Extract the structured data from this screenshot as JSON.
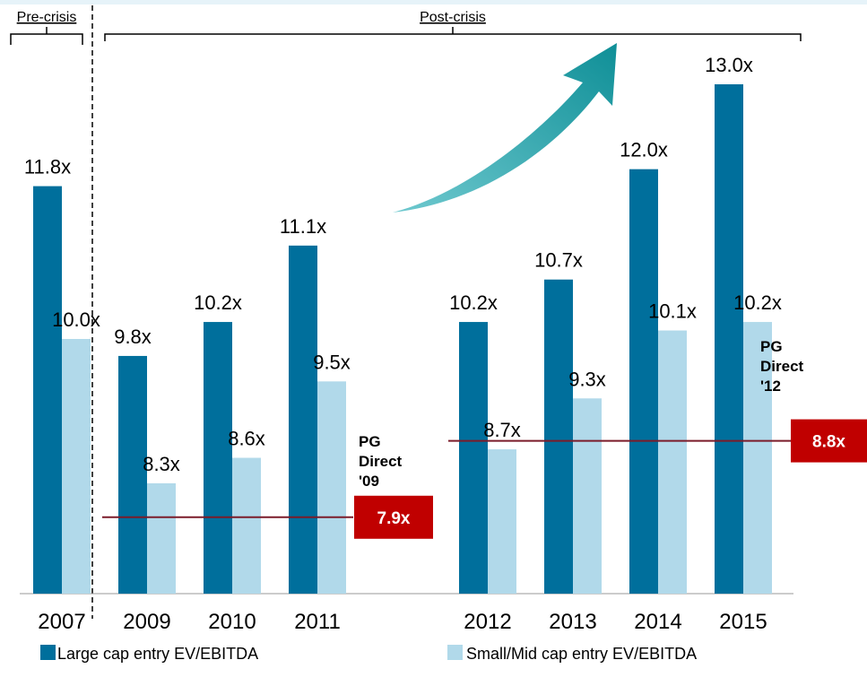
{
  "chart_data": {
    "type": "bar",
    "categories": [
      "2007",
      "2009",
      "2010",
      "2011",
      null,
      "2012",
      "2013",
      "2014",
      "2015"
    ],
    "series": [
      {
        "name": "Large cap entry EV/EBITDA",
        "color": "#006f9c",
        "values": [
          11.8,
          9.8,
          10.2,
          11.1,
          null,
          10.2,
          10.7,
          12.0,
          13.0
        ],
        "value_labels": [
          "11.8x",
          "9.8x",
          "10.2x",
          "11.1x",
          null,
          "10.2x",
          "10.7x",
          "12.0x",
          "13.0x"
        ]
      },
      {
        "name": "Small/Mid cap entry EV/EBITDA",
        "color": "#b1d9ea",
        "values": [
          10.0,
          8.3,
          8.6,
          9.5,
          null,
          8.7,
          9.3,
          10.1,
          10.2
        ],
        "value_labels": [
          "10.0x",
          "8.3x",
          "8.6x",
          "9.5x",
          null,
          "8.7x",
          "9.3x",
          "10.1x",
          "10.2x"
        ]
      }
    ],
    "ylim": [
      7,
      13
    ],
    "sections": [
      "Pre-crisis",
      "Post-crisis"
    ],
    "reference_lines": [
      {
        "value": 7.9,
        "label": "7.9x",
        "annotation": "PG Direct '09",
        "color": "#7b1c2a",
        "box_color": "#c00000"
      },
      {
        "value": 8.8,
        "label": "8.8x",
        "annotation": "PG Direct '12",
        "color": "#7b1c2a",
        "box_color": "#c00000"
      }
    ]
  }
}
